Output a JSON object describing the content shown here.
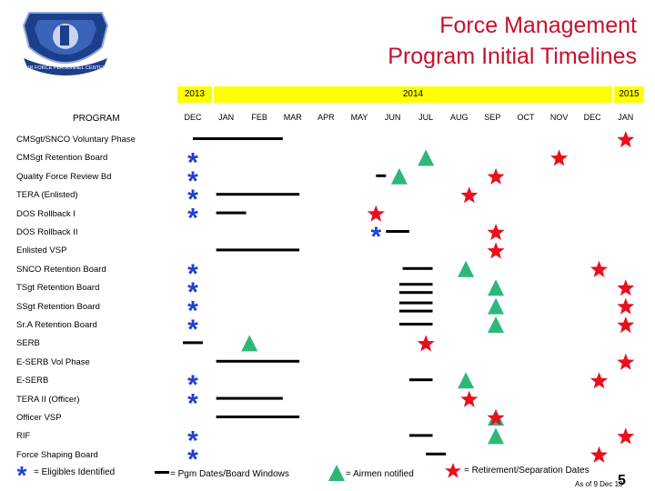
{
  "slide": {
    "title_line1": "Force Management",
    "title_line2": "Program Initial Timelines",
    "logo_text": "AIR FORCE PERSONNEL CENTER"
  },
  "table": {
    "program_header": "PROGRAM",
    "years": [
      "2013",
      "2014",
      "2015"
    ],
    "months": [
      "DEC",
      "JAN",
      "FEB",
      "MAR",
      "APR",
      "MAY",
      "JUN",
      "JUL",
      "AUG",
      "SEP",
      "OCT",
      "NOV",
      "DEC",
      "JAN"
    ],
    "rows": [
      "CMSgt/SNCO Voluntary Phase",
      "CMSgt Retention Board",
      "Quality Force Review Bd",
      "TERA  (Enlisted)",
      "DOS Rollback I",
      "DOS Rollback II",
      "Enlisted VSP",
      "SNCO Retention Board",
      "TSgt Retention Board",
      "SSgt Retention Board",
      "Sr.A Retention Board",
      "SERB",
      "E-SERB Vol Phase",
      "E-SERB",
      "TERA II (Officer)",
      "Officer VSP",
      "RIF",
      "Force Shaping Board"
    ]
  },
  "legend": {
    "eligibles": "= Eligibles Identified",
    "windows": "= Pgm Dates/Board Windows",
    "airmen": "= Airmen notified",
    "retirement": "= Retirement/Separation Dates"
  },
  "footer": {
    "page_number": "5",
    "as_of": "As of 9 Dec 13"
  },
  "colors": {
    "title": "#c8102e",
    "year_band": "#ffff00",
    "asterisk": "#1f3fd0",
    "line": "#000000",
    "triangle": "#2db87a",
    "star": "#e8101e"
  },
  "marks": {
    "lines": [
      {
        "row": 0,
        "from": 0.0,
        "to": 2.7
      },
      {
        "row": 2,
        "from": 5.5,
        "to": 5.8
      },
      {
        "row": 3,
        "from": 0.7,
        "to": 3.2
      },
      {
        "row": 4,
        "from": 0.7,
        "to": 1.6
      },
      {
        "row": 5,
        "from": 5.8,
        "to": 6.5
      },
      {
        "row": 6,
        "from": 0.7,
        "to": 3.2
      },
      {
        "row": 7,
        "from": 6.3,
        "to": 7.2
      },
      {
        "row": 8,
        "from": 6.2,
        "to": 7.2
      },
      {
        "row": 8,
        "from": 6.2,
        "to": 7.2
      },
      {
        "row": 9,
        "from": 6.2,
        "to": 7.2
      },
      {
        "row": 9,
        "from": 6.2,
        "to": 7.2
      },
      {
        "row": 10,
        "from": 6.2,
        "to": 7.2
      },
      {
        "row": 11,
        "from": -0.3,
        "to": 0.3
      },
      {
        "row": 12,
        "from": 0.7,
        "to": 3.2
      },
      {
        "row": 13,
        "from": 6.5,
        "to": 7.2
      },
      {
        "row": 14,
        "from": 0.7,
        "to": 2.7
      },
      {
        "row": 15,
        "from": 0.7,
        "to": 3.2
      },
      {
        "row": 16,
        "from": 6.5,
        "to": 7.2
      },
      {
        "row": 17,
        "from": 7.0,
        "to": 7.6
      }
    ],
    "asterisks": [
      {
        "row": 1,
        "col": 0
      },
      {
        "row": 2,
        "col": 0
      },
      {
        "row": 3,
        "col": 0
      },
      {
        "row": 4,
        "col": 0
      },
      {
        "row": 5,
        "col": 5.5
      },
      {
        "row": 7,
        "col": 0
      },
      {
        "row": 8,
        "col": 0
      },
      {
        "row": 9,
        "col": 0
      },
      {
        "row": 10,
        "col": 0
      },
      {
        "row": 13,
        "col": 0
      },
      {
        "row": 14,
        "col": 0
      },
      {
        "row": 16,
        "col": 0
      },
      {
        "row": 17,
        "col": 0
      }
    ],
    "triangles": [
      {
        "row": 1,
        "col": 7.0
      },
      {
        "row": 2,
        "col": 6.2
      },
      {
        "row": 7,
        "col": 8.2
      },
      {
        "row": 8,
        "col": 9.1
      },
      {
        "row": 9,
        "col": 9.1
      },
      {
        "row": 10,
        "col": 9.1
      },
      {
        "row": 11,
        "col": 1.7
      },
      {
        "row": 13,
        "col": 8.2
      },
      {
        "row": 15,
        "col": 9.1
      },
      {
        "row": 16,
        "col": 9.1
      }
    ],
    "stars": [
      {
        "row": 0,
        "col": 13.0
      },
      {
        "row": 1,
        "col": 11.0
      },
      {
        "row": 2,
        "col": 9.1
      },
      {
        "row": 3,
        "col": 8.3
      },
      {
        "row": 4,
        "col": 5.5
      },
      {
        "row": 5,
        "col": 9.1
      },
      {
        "row": 6,
        "col": 9.1
      },
      {
        "row": 7,
        "col": 12.2
      },
      {
        "row": 8,
        "col": 13.0
      },
      {
        "row": 9,
        "col": 13.0
      },
      {
        "row": 10,
        "col": 13.0
      },
      {
        "row": 11,
        "col": 7.0
      },
      {
        "row": 12,
        "col": 13.0
      },
      {
        "row": 13,
        "col": 12.2
      },
      {
        "row": 14,
        "col": 8.3
      },
      {
        "row": 15,
        "col": 9.1
      },
      {
        "row": 16,
        "col": 13.0
      },
      {
        "row": 17,
        "col": 12.2
      }
    ]
  }
}
